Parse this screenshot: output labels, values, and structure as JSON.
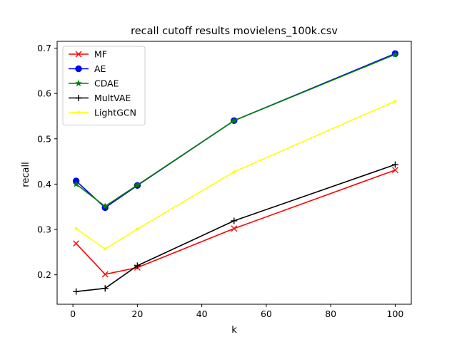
{
  "chart_data": {
    "type": "line",
    "title": "recall cutoff results movielens_100k.csv",
    "xlabel": "k",
    "ylabel": "recall",
    "xlim": [
      -4.9,
      105
    ],
    "ylim": [
      0.135,
      0.715
    ],
    "x": [
      1,
      10,
      20,
      50,
      100
    ],
    "xticks": [
      0,
      20,
      40,
      60,
      80,
      100
    ],
    "yticks": [
      0.2,
      0.3,
      0.4,
      0.5,
      0.6,
      0.7
    ],
    "xtick_labels": [
      "0",
      "20",
      "40",
      "60",
      "80",
      "100"
    ],
    "ytick_labels": [
      "0.2",
      "0.3",
      "0.4",
      "0.5",
      "0.6",
      "0.7"
    ],
    "grid": false,
    "legend_position": "top-left",
    "series": [
      {
        "name": "MF",
        "values": [
          0.269,
          0.201,
          0.216,
          0.302,
          0.431
        ],
        "color": "#ff0000",
        "marker": "x"
      },
      {
        "name": "AE",
        "values": [
          0.407,
          0.348,
          0.397,
          0.54,
          0.688
        ],
        "color": "#0000ff",
        "marker": "circle"
      },
      {
        "name": "CDAE",
        "values": [
          0.4,
          0.351,
          0.398,
          0.54,
          0.686
        ],
        "color": "#008000",
        "marker": "star"
      },
      {
        "name": "MultVAE",
        "values": [
          0.163,
          0.17,
          0.22,
          0.319,
          0.443
        ],
        "color": "#000000",
        "marker": "plus"
      },
      {
        "name": "LightGCN",
        "values": [
          0.302,
          0.257,
          0.301,
          0.427,
          0.583
        ],
        "color": "#ffff00",
        "marker": "point"
      }
    ]
  }
}
